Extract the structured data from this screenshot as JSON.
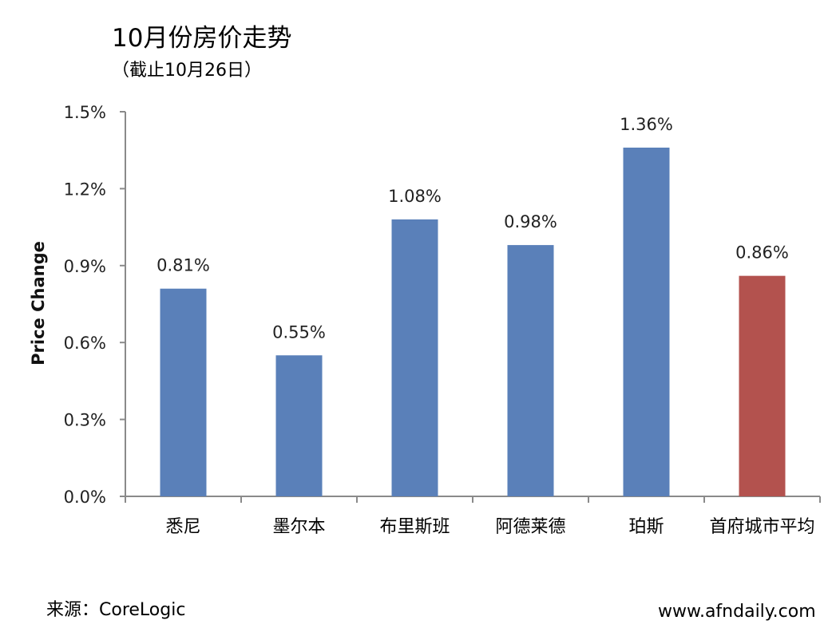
{
  "title": "10月份房价走势",
  "subtitle": "（截止10月26日）",
  "source": "来源：CoreLogic",
  "website": "www.afndaily.com",
  "colors": {
    "bar_default": "#5a80b9",
    "bar_highlight": "#b3524e",
    "axis": "#8a8a8a"
  },
  "chart_data": {
    "type": "bar",
    "ylabel": "Price Change",
    "ylim": [
      0,
      1.5
    ],
    "yticks": [
      "0.0%",
      "0.3%",
      "0.6%",
      "0.9%",
      "1.2%",
      "1.5%"
    ],
    "ytick_values": [
      0,
      0.3,
      0.6,
      0.9,
      1.2,
      1.5
    ],
    "grid": false,
    "categories": [
      "悉尼",
      "墨尔本",
      "布里斯班",
      "阿德莱德",
      "珀斯",
      "首府城市平均"
    ],
    "values": [
      0.81,
      0.55,
      1.08,
      0.98,
      1.36,
      0.86
    ],
    "data_labels": [
      "0.81%",
      "0.55%",
      "1.08%",
      "0.98%",
      "1.36%",
      "0.86%"
    ],
    "highlight_index": 5
  }
}
